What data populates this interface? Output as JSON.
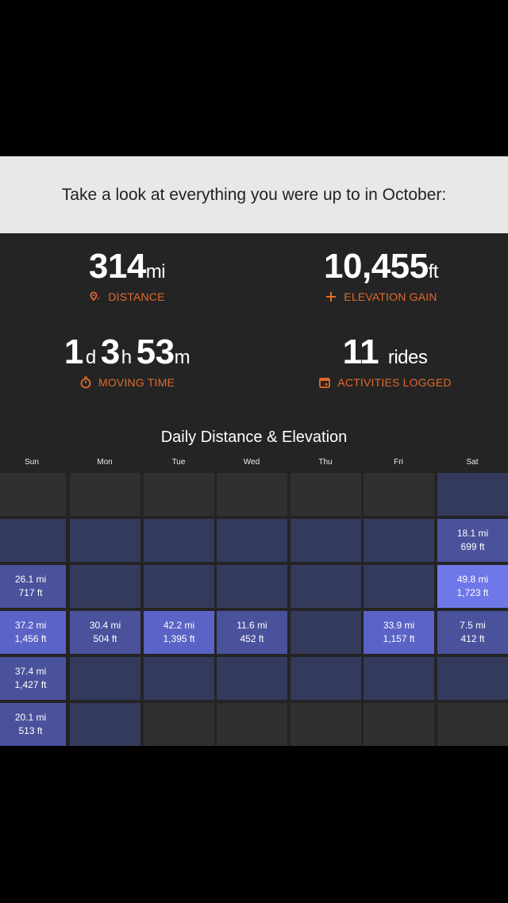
{
  "banner": {
    "text": "Take a look at everything you were up to in October:"
  },
  "stats": {
    "distance": {
      "value": "314",
      "unit": "mi",
      "label": "DISTANCE"
    },
    "elevation": {
      "value": "10,455",
      "unit": "ft",
      "label": "ELEVATION GAIN"
    },
    "moving_time": {
      "d": "1",
      "d_unit": "d",
      "h": "3",
      "h_unit": "h",
      "m": "53",
      "m_unit": "m",
      "label": "MOVING TIME"
    },
    "activities": {
      "value": "11",
      "unit": "rides",
      "label": "ACTIVITIES LOGGED"
    }
  },
  "chart": {
    "title": "Daily Distance & Elevation",
    "days": [
      "Sun",
      "Mon",
      "Tue",
      "Wed",
      "Thu",
      "Fri",
      "Sat"
    ]
  },
  "rides": {
    "oct1_dist": "18.1 mi",
    "oct1_elev": "699 ft",
    "oct2_dist": "26.1 mi",
    "oct2_elev": "717 ft",
    "oct8_dist": "49.8 mi",
    "oct8_elev": "1,723 ft",
    "oct9_dist": "37.2 mi",
    "oct9_elev": "1,456 ft",
    "oct10_dist": "30.4 mi",
    "oct10_elev": "504 ft",
    "oct11_dist": "42.2 mi",
    "oct11_elev": "1,395 ft",
    "oct12_dist": "11.6 mi",
    "oct12_elev": "452 ft",
    "oct14_dist": "33.9 mi",
    "oct14_elev": "1,157 ft",
    "oct15_dist": "7.5 mi",
    "oct15_elev": "412 ft",
    "oct16_dist": "37.4 mi",
    "oct16_elev": "1,427 ft",
    "oct23_dist": "20.1 mi",
    "oct23_elev": "513 ft"
  },
  "colors": {
    "accent": "#e36a2a",
    "panel": "#242424",
    "banner": "#e8e8e8",
    "empty_cell": "#303030",
    "day_cell": "#343a5c",
    "ride_cell": "#5b63c7"
  },
  "icons": {
    "distance": "map-pin-icon",
    "elevation": "plus-icon",
    "moving_time": "stopwatch-icon",
    "activities": "calendar-icon"
  }
}
